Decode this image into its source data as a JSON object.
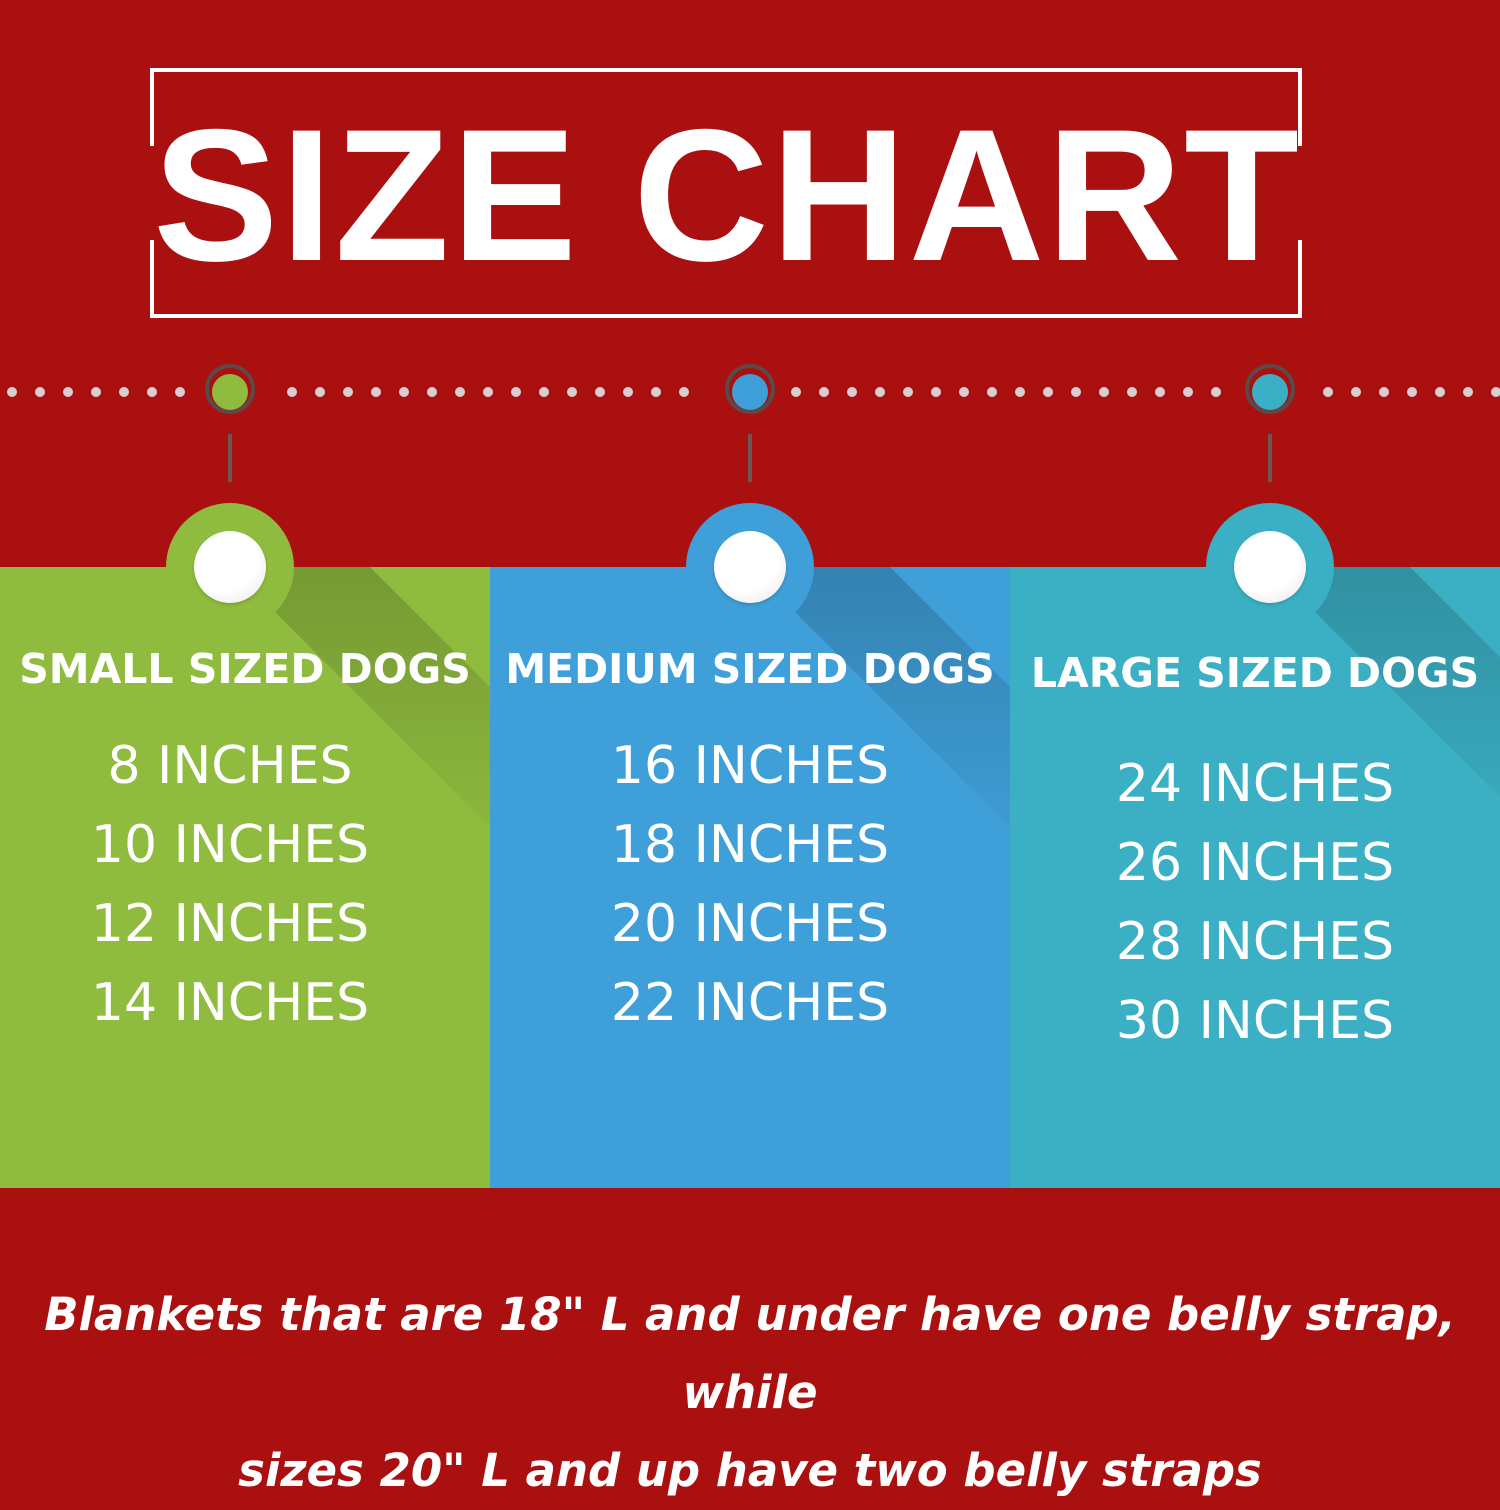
{
  "title": "SIZE CHART",
  "colors": {
    "background": "#ab1010",
    "small": "#8fbb3e",
    "medium": "#3f9fd8",
    "large": "#3bb0c4"
  },
  "panels": [
    {
      "heading": "SMALL SIZED DOGS",
      "sizes": [
        "8 INCHES",
        "10 INCHES",
        "12 INCHES",
        "14 INCHES"
      ]
    },
    {
      "heading": "MEDIUM SIZED DOGS",
      "sizes": [
        "16 INCHES",
        "18 INCHES",
        "20 INCHES",
        "22 INCHES"
      ]
    },
    {
      "heading": "LARGE SIZED DOGS",
      "sizes": [
        "24 INCHES",
        "26 INCHES",
        "28 INCHES",
        "30 INCHES"
      ]
    }
  ],
  "footer": {
    "line1": "Blankets that are 18\" L and under have one belly strap, while",
    "line2": "sizes 20\" L and up have two belly straps"
  }
}
